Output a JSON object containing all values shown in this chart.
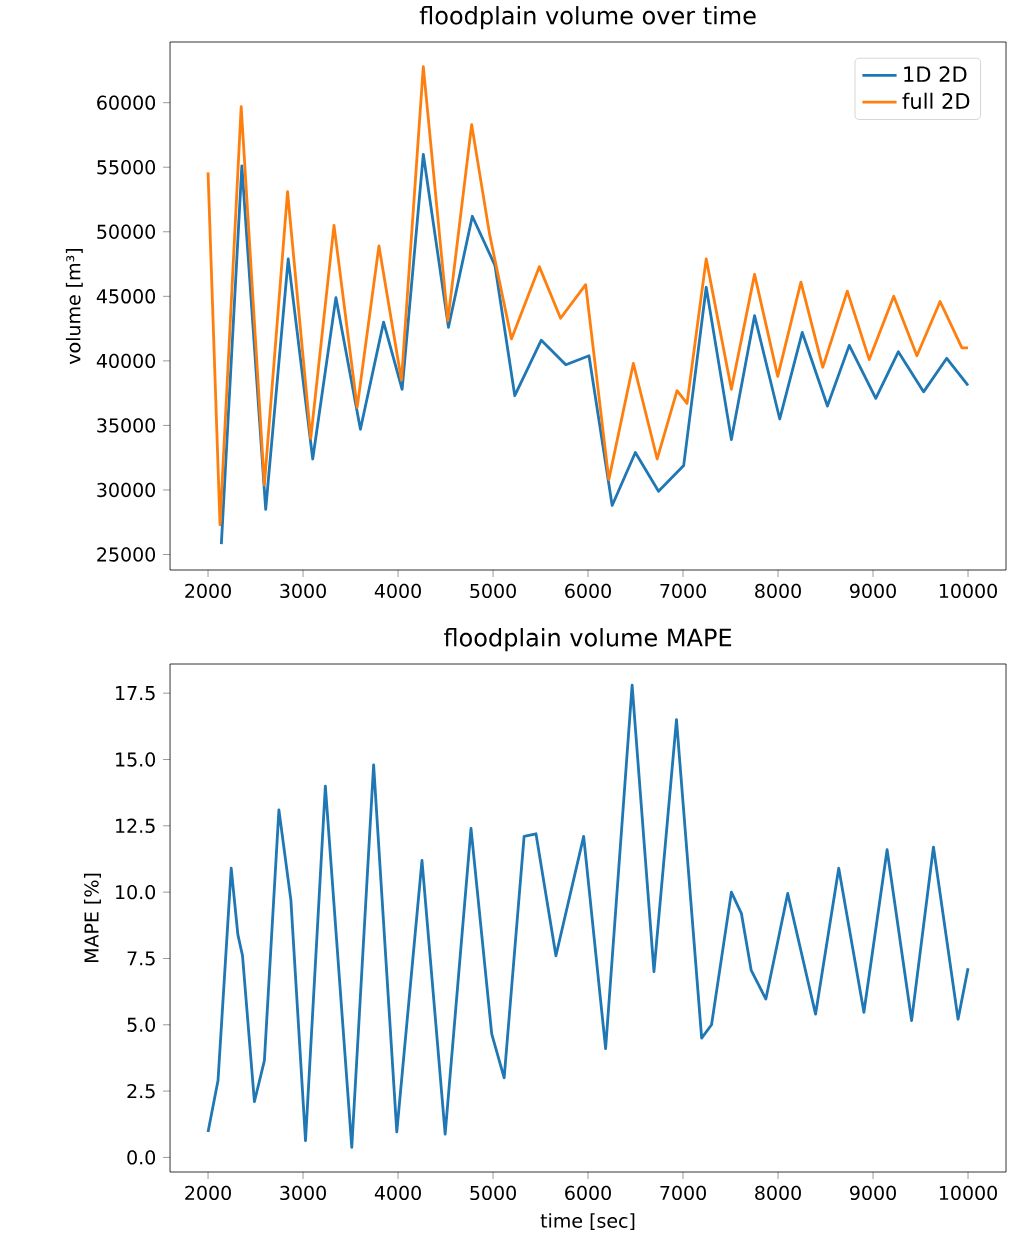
{
  "chart_data": [
    {
      "type": "line",
      "title": "floodplain volume over time",
      "ylabel": "volume [m³]",
      "xlim": [
        1600,
        10400
      ],
      "ylim": [
        23800,
        64700
      ],
      "xticks": [
        2000,
        3000,
        4000,
        5000,
        6000,
        7000,
        8000,
        9000,
        10000
      ],
      "yticks": [
        25000,
        30000,
        35000,
        40000,
        45000,
        50000,
        55000,
        60000
      ],
      "legend": "top right",
      "grid": false,
      "marker": "none",
      "line_style": "solid",
      "series": [
        {
          "name": "1D 2D",
          "color": "#1f77b4",
          "x": [
            2140,
            2356,
            2607,
            2844,
            3102,
            3346,
            3604,
            3848,
            4043,
            4266,
            4531,
            4782,
            5020,
            5229,
            5508,
            5766,
            6010,
            6254,
            6498,
            6742,
            7007,
            7244,
            7509,
            7753,
            8018,
            8255,
            8520,
            8750,
            9029,
            9266,
            9532,
            9776,
            10000
          ],
          "values": [
            25800,
            55100,
            28500,
            47900,
            32400,
            44900,
            34700,
            43000,
            37800,
            56000,
            42600,
            51200,
            47400,
            37300,
            41600,
            39700,
            40400,
            28800,
            32900,
            29900,
            31900,
            45700,
            33900,
            43500,
            35500,
            42200,
            36500,
            41200,
            37100,
            40700,
            37600,
            40200,
            38100
          ]
        },
        {
          "name": "full 2D",
          "color": "#ff7f0e",
          "x": [
            2000,
            2126,
            2349,
            2593,
            2837,
            3081,
            3326,
            3570,
            3799,
            4036,
            4266,
            4524,
            4775,
            4964,
            5194,
            5487,
            5711,
            5975,
            6219,
            6477,
            6728,
            6937,
            7042,
            7244,
            7509,
            7753,
            7997,
            8241,
            8471,
            8729,
            8960,
            9218,
            9462,
            9706,
            9936,
            10000
          ],
          "values": [
            54600,
            27300,
            59700,
            30400,
            53100,
            34000,
            50500,
            36400,
            48900,
            38500,
            62800,
            43100,
            58300,
            49800,
            41700,
            47300,
            43300,
            45900,
            30800,
            39800,
            32400,
            37700,
            36700,
            47900,
            37800,
            46700,
            38800,
            46100,
            39500,
            45400,
            40100,
            45000,
            40400,
            44600,
            41000,
            41000
          ]
        }
      ]
    },
    {
      "type": "line",
      "title": "floodplain volume MAPE",
      "xlabel": "time  [sec]",
      "ylabel": "MAPE [%]",
      "xlim": [
        1600,
        10400
      ],
      "ylim": [
        -0.55,
        18.6
      ],
      "xticks": [
        2000,
        3000,
        4000,
        5000,
        6000,
        7000,
        8000,
        9000,
        10000
      ],
      "yticks": [
        {
          "value": 0,
          "label": "0.0"
        },
        {
          "value": 2.5,
          "label": "2.5"
        },
        {
          "value": 5,
          "label": "5.0"
        },
        {
          "value": 7.5,
          "label": "7.5"
        },
        {
          "value": 10,
          "label": "10.0"
        },
        {
          "value": 12.5,
          "label": "12.5"
        },
        {
          "value": 15,
          "label": "15.0"
        },
        {
          "value": 17.5,
          "label": "17.5"
        }
      ],
      "legend": false,
      "grid": false,
      "marker": "none",
      "line_style": "solid",
      "series": [
        {
          "color": "#1f77b4",
          "x": [
            2000,
            2105,
            2244,
            2314,
            2363,
            2488,
            2593,
            2746,
            2872,
            3026,
            3235,
            3513,
            3743,
            3987,
            4252,
            4496,
            4768,
            4986,
            5117,
            5327,
            5452,
            5662,
            5954,
            6185,
            6464,
            6694,
            6931,
            7196,
            7300,
            7509,
            7614,
            7718,
            7872,
            8102,
            8395,
            8639,
            8904,
            9148,
            9406,
            9636,
            9895,
            10000
          ],
          "values": [
            0.96,
            2.9,
            10.9,
            8.4,
            7.6,
            2.1,
            3.65,
            13.1,
            9.7,
            0.63,
            14.0,
            0.38,
            14.8,
            0.96,
            11.2,
            0.88,
            12.4,
            4.66,
            3.0,
            12.1,
            12.2,
            7.6,
            12.1,
            4.1,
            17.8,
            7.0,
            16.5,
            4.5,
            5.0,
            10.0,
            9.2,
            7.05,
            5.97,
            9.95,
            5.4,
            10.9,
            5.47,
            11.6,
            5.16,
            11.7,
            5.21,
            7.13
          ]
        }
      ]
    }
  ]
}
